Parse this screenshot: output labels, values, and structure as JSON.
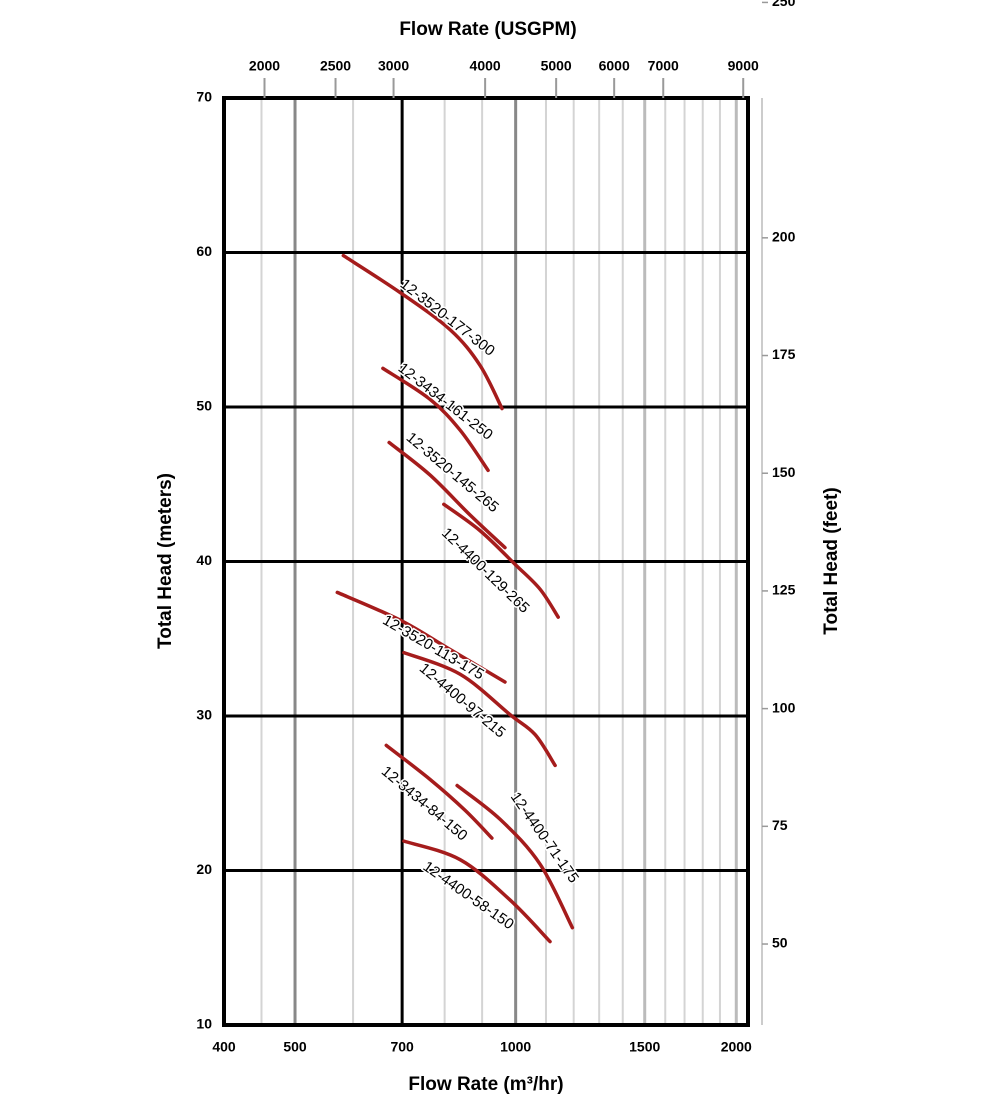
{
  "chart_data": {
    "type": "line",
    "title": "Flow Rate (USGPM)",
    "xlabel": "Flow Rate (m³/hr)",
    "ylabel": "Total Head (meters)",
    "y2label": "Total Head (feet)",
    "xscale": "log",
    "xlim": [
      400,
      2075
    ],
    "xticks": [
      400,
      500,
      700,
      1000,
      1500,
      2000
    ],
    "xgrid_colors": [
      "#000000",
      "#888888",
      "#000000",
      "#888888",
      "#bbbbbb",
      "#bbbbbb"
    ],
    "xminor": [
      450,
      600,
      800,
      900,
      1100,
      1200,
      1300,
      1400,
      1600,
      1700,
      1800,
      1900
    ],
    "x2lim": [
      1761,
      9136
    ],
    "x2ticks": [
      2000,
      2500,
      3000,
      4000,
      5000,
      6000,
      7000,
      9000
    ],
    "ylim": [
      10,
      70
    ],
    "yticks": [
      10,
      20,
      30,
      40,
      50,
      60,
      70
    ],
    "y2lim": [
      32.8,
      229.7
    ],
    "y2ticks": [
      50,
      75,
      100,
      125,
      150,
      175,
      200,
      250
    ],
    "grid": true,
    "series": [
      {
        "name": "12-3520-177-300",
        "color": "#a51c1c",
        "x": [
          582,
          696,
          814,
          894,
          958
        ],
        "values": [
          59.8,
          57.4,
          55.0,
          52.7,
          49.9
        ]
      },
      {
        "name": "12-3434-161-250",
        "color": "#a51c1c",
        "x": [
          659,
          764,
          840,
          917
        ],
        "values": [
          52.5,
          50.5,
          48.5,
          45.9
        ]
      },
      {
        "name": "12-3520-145-265",
        "color": "#a51c1c",
        "x": [
          672,
          764,
          867,
          967
        ],
        "values": [
          47.7,
          45.6,
          43.0,
          40.9
        ]
      },
      {
        "name": "12-4400-129-265",
        "color": "#a51c1c",
        "x": [
          798,
          894,
          999,
          1080,
          1143
        ],
        "values": [
          43.7,
          42.0,
          39.8,
          38.2,
          36.4
        ]
      },
      {
        "name": "12-3520-113-175",
        "color": "#a51c1c",
        "x": [
          571,
          696,
          814,
          967
        ],
        "values": [
          38.0,
          36.2,
          34.3,
          32.2
        ]
      },
      {
        "name": "12-4400-97-215",
        "color": "#a51c1c",
        "x": [
          704,
          840,
          982,
          1063,
          1132
        ],
        "values": [
          34.1,
          32.7,
          30.1,
          28.8,
          26.8
        ]
      },
      {
        "name": "12-3434-84-150",
        "color": "#a51c1c",
        "x": [
          666,
          764,
          853,
          928
        ],
        "values": [
          28.1,
          25.9,
          23.9,
          22.1
        ]
      },
      {
        "name": "12-4400-71-175",
        "color": "#a51c1c",
        "x": [
          832,
          953,
          1080,
          1195
        ],
        "values": [
          25.5,
          23.3,
          20.4,
          16.3
        ]
      },
      {
        "name": "12-4400-58-150",
        "color": "#a51c1c",
        "x": [
          704,
          840,
          982,
          1114
        ],
        "values": [
          21.9,
          20.7,
          18.1,
          15.4
        ]
      }
    ]
  }
}
